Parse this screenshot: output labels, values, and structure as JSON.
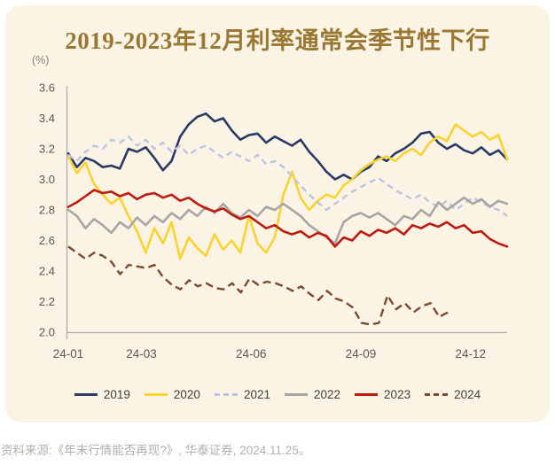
{
  "page": {
    "background": "#FFFFFF"
  },
  "card": {
    "background": "#FBF3E3"
  },
  "chart_data": {
    "type": "line",
    "title": "2019-2023年12月利率通常会季节性下行",
    "title_color": "#9A7834",
    "unit_label": "(%)",
    "xlabel": "",
    "ylabel": "(%)",
    "x_tick_labels": [
      "24-01",
      "24-03",
      "24-06",
      "24-09",
      "24-12"
    ],
    "x_tick_months": [
      1,
      3,
      6,
      9,
      12
    ],
    "x_range_months": [
      1,
      13
    ],
    "ylim": [
      2.0,
      3.6
    ],
    "y_tick_step": 0.2,
    "grid": false,
    "legend_position": "bottom",
    "axis_color": "#ACACAC",
    "tick_label_color": "#585858",
    "series": [
      {
        "name": "2019",
        "color": "#293A66",
        "dashed": false,
        "dash_pattern": "",
        "span": 1.0,
        "values": [
          3.17,
          3.08,
          3.14,
          3.12,
          3.08,
          3.09,
          3.07,
          3.2,
          3.18,
          3.21,
          3.14,
          3.06,
          3.12,
          3.28,
          3.36,
          3.41,
          3.43,
          3.38,
          3.4,
          3.32,
          3.26,
          3.29,
          3.3,
          3.24,
          3.28,
          3.25,
          3.22,
          3.26,
          3.18,
          3.12,
          3.05,
          3.0,
          3.03,
          3.0,
          3.05,
          3.08,
          3.15,
          3.12,
          3.17,
          3.2,
          3.24,
          3.3,
          3.31,
          3.24,
          3.2,
          3.23,
          3.19,
          3.17,
          3.21,
          3.16,
          3.19,
          3.13
        ]
      },
      {
        "name": "2020",
        "color": "#FBD22F",
        "dashed": false,
        "dash_pattern": "",
        "span": 1.0,
        "values": [
          3.15,
          3.04,
          3.11,
          2.97,
          2.9,
          2.84,
          2.88,
          2.76,
          2.66,
          2.52,
          2.68,
          2.58,
          2.72,
          2.48,
          2.62,
          2.55,
          2.5,
          2.64,
          2.54,
          2.6,
          2.52,
          2.76,
          2.58,
          2.52,
          2.62,
          2.9,
          3.05,
          2.88,
          2.8,
          2.86,
          2.9,
          2.88,
          2.96,
          3.0,
          3.06,
          3.1,
          3.13,
          3.15,
          3.12,
          3.17,
          3.2,
          3.16,
          3.24,
          3.28,
          3.25,
          3.36,
          3.32,
          3.28,
          3.31,
          3.26,
          3.29,
          3.13
        ]
      },
      {
        "name": "2021",
        "color": "#BCC4E4",
        "dashed": true,
        "dash_pattern": "7 5",
        "span": 1.0,
        "values": [
          3.16,
          3.12,
          3.18,
          3.22,
          3.2,
          3.26,
          3.24,
          3.28,
          3.22,
          3.26,
          3.2,
          3.24,
          3.18,
          3.22,
          3.16,
          3.2,
          3.22,
          3.18,
          3.14,
          3.18,
          3.15,
          3.12,
          3.16,
          3.1,
          3.12,
          3.08,
          3.02,
          2.96,
          2.9,
          2.85,
          2.8,
          2.84,
          2.88,
          2.92,
          2.95,
          2.98,
          3.01,
          2.97,
          2.93,
          2.9,
          2.87,
          2.9,
          2.85,
          2.82,
          2.86,
          2.8,
          2.84,
          2.88,
          2.85,
          2.82,
          2.8,
          2.76
        ]
      },
      {
        "name": "2022",
        "color": "#A6A6A6",
        "dashed": false,
        "dash_pattern": "",
        "span": 1.0,
        "values": [
          2.8,
          2.76,
          2.68,
          2.74,
          2.7,
          2.65,
          2.72,
          2.68,
          2.75,
          2.7,
          2.76,
          2.72,
          2.78,
          2.74,
          2.8,
          2.76,
          2.82,
          2.78,
          2.84,
          2.78,
          2.75,
          2.8,
          2.76,
          2.82,
          2.8,
          2.84,
          2.8,
          2.76,
          2.7,
          2.66,
          2.62,
          2.58,
          2.72,
          2.76,
          2.78,
          2.75,
          2.78,
          2.74,
          2.7,
          2.76,
          2.74,
          2.8,
          2.76,
          2.85,
          2.8,
          2.84,
          2.88,
          2.84,
          2.87,
          2.82,
          2.86,
          2.84
        ]
      },
      {
        "name": "2023",
        "color": "#BE1A10",
        "dashed": false,
        "dash_pattern": "",
        "span": 1.0,
        "values": [
          2.82,
          2.85,
          2.89,
          2.93,
          2.91,
          2.92,
          2.89,
          2.91,
          2.87,
          2.9,
          2.91,
          2.88,
          2.9,
          2.86,
          2.88,
          2.84,
          2.81,
          2.79,
          2.81,
          2.77,
          2.74,
          2.76,
          2.72,
          2.68,
          2.7,
          2.66,
          2.64,
          2.66,
          2.62,
          2.65,
          2.63,
          2.56,
          2.62,
          2.6,
          2.66,
          2.63,
          2.67,
          2.65,
          2.68,
          2.64,
          2.7,
          2.68,
          2.71,
          2.69,
          2.72,
          2.68,
          2.7,
          2.65,
          2.66,
          2.61,
          2.58,
          2.56
        ]
      },
      {
        "name": "2024",
        "color": "#7C4A2E",
        "dashed": true,
        "dash_pattern": "9 5",
        "span": 0.865,
        "values": [
          2.56,
          2.52,
          2.48,
          2.52,
          2.5,
          2.46,
          2.38,
          2.44,
          2.43,
          2.42,
          2.44,
          2.36,
          2.31,
          2.28,
          2.34,
          2.3,
          2.32,
          2.29,
          2.28,
          2.32,
          2.26,
          2.35,
          2.31,
          2.33,
          2.32,
          2.3,
          2.27,
          2.3,
          2.25,
          2.21,
          2.27,
          2.22,
          2.2,
          2.16,
          2.06,
          2.05,
          2.06,
          2.24,
          2.15,
          2.19,
          2.13,
          2.17,
          2.19,
          2.1,
          2.13
        ]
      }
    ]
  },
  "footer": {
    "source": "资料来源:《年末行情能否再现?》, 华泰证券, 2024.11.25。"
  }
}
